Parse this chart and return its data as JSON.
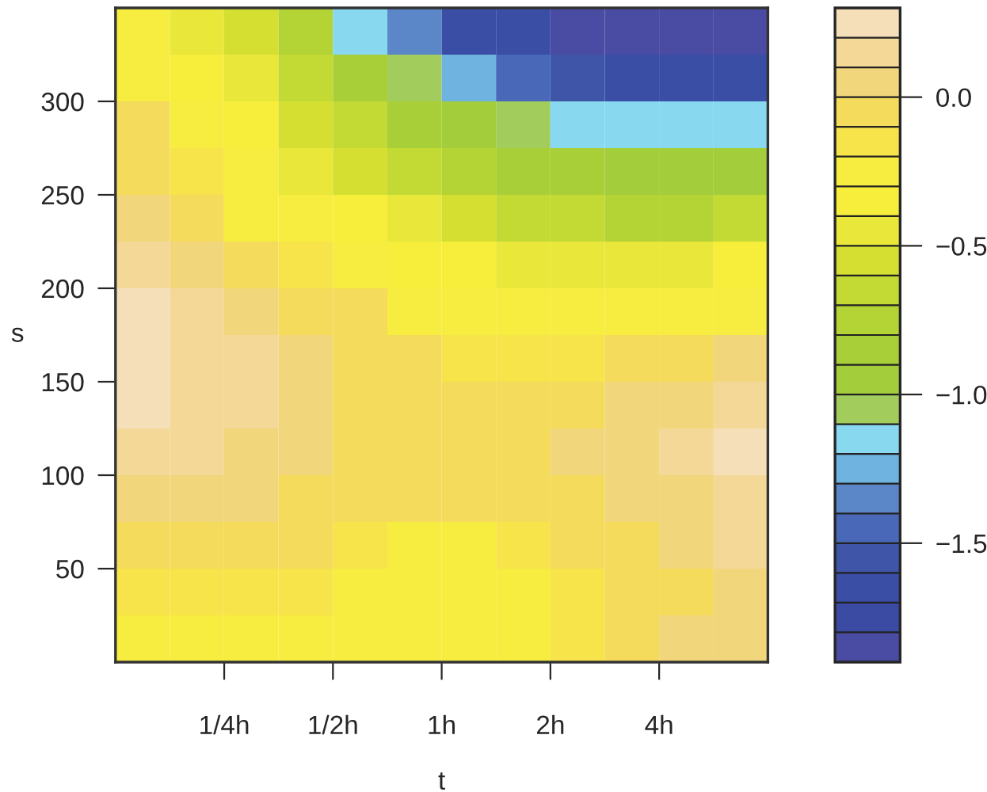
{
  "chart_data": {
    "type": "heatmap",
    "xlabel": "t",
    "ylabel": "s",
    "x": [
      0.149,
      0.21,
      0.297,
      0.42,
      0.595,
      0.841,
      1.19,
      1.68,
      2.38,
      3.36,
      4.76,
      6.73
    ],
    "log": "x",
    "y": [
      337.5,
      312.5,
      287.5,
      262.5,
      237.5,
      212.5,
      187.5,
      162.5,
      137.5,
      112.5,
      87.5,
      62.5,
      37.5,
      12.5
    ],
    "xlim": [
      0.125,
      8
    ],
    "xticks": [
      {
        "value": 0.25,
        "label": "1/4h"
      },
      {
        "value": 0.5,
        "label": "1/2h"
      },
      {
        "value": 1,
        "label": "1h"
      },
      {
        "value": 2,
        "label": "2h"
      },
      {
        "value": 4,
        "label": "4h"
      }
    ],
    "ylim": [
      0,
      350
    ],
    "yticks": [
      50,
      100,
      150,
      200,
      250,
      300
    ],
    "cells": [
      [
        -0.2,
        -0.45,
        -0.6,
        -0.8,
        -1.15,
        -1.4,
        -1.6,
        -1.7,
        -1.8,
        -1.85,
        -1.85,
        -1.9
      ],
      [
        -0.2,
        -0.35,
        -0.5,
        -0.65,
        -0.85,
        -1.05,
        -1.25,
        -1.45,
        -1.55,
        -1.6,
        -1.65,
        -1.65
      ],
      [
        -0.1,
        -0.25,
        -0.4,
        -0.55,
        -0.7,
        -0.85,
        -0.95,
        -1.05,
        -1.15,
        -1.15,
        -1.15,
        -1.2
      ],
      [
        -0.05,
        -0.15,
        -0.3,
        -0.45,
        -0.55,
        -0.65,
        -0.75,
        -0.85,
        -0.9,
        -0.95,
        -0.95,
        -0.95
      ],
      [
        0.05,
        -0.05,
        -0.2,
        -0.3,
        -0.4,
        -0.5,
        -0.6,
        -0.65,
        -0.7,
        -0.75,
        -0.75,
        -0.7
      ],
      [
        0.15,
        0.05,
        -0.05,
        -0.15,
        -0.25,
        -0.35,
        -0.4,
        -0.45,
        -0.5,
        -0.5,
        -0.45,
        -0.4
      ],
      [
        0.25,
        0.15,
        0.05,
        -0.05,
        -0.1,
        -0.2,
        -0.25,
        -0.3,
        -0.3,
        -0.3,
        -0.25,
        -0.2
      ],
      [
        0.25,
        0.15,
        0.1,
        0.0,
        -0.05,
        -0.1,
        -0.15,
        -0.15,
        -0.15,
        -0.1,
        -0.05,
        0.05
      ],
      [
        0.25,
        0.15,
        0.1,
        0.05,
        -0.05,
        -0.05,
        -0.1,
        -0.05,
        -0.05,
        0.0,
        0.05,
        0.15
      ],
      [
        0.15,
        0.1,
        0.05,
        0.0,
        -0.05,
        -0.1,
        -0.1,
        -0.05,
        0.0,
        0.05,
        0.1,
        0.2
      ],
      [
        0.05,
        0.05,
        0.0,
        -0.05,
        -0.1,
        -0.1,
        -0.1,
        -0.1,
        -0.05,
        0.0,
        0.05,
        0.15
      ],
      [
        -0.05,
        -0.05,
        -0.05,
        -0.1,
        -0.15,
        -0.2,
        -0.2,
        -0.15,
        -0.1,
        -0.05,
        0.0,
        0.1
      ],
      [
        -0.15,
        -0.15,
        -0.15,
        -0.15,
        -0.2,
        -0.25,
        -0.25,
        -0.2,
        -0.15,
        -0.1,
        -0.05,
        0.05
      ],
      [
        -0.2,
        -0.2,
        -0.2,
        -0.2,
        -0.2,
        -0.25,
        -0.25,
        -0.2,
        -0.15,
        -0.1,
        0.0,
        0.05
      ]
    ],
    "clim": [
      -1.9,
      0.3
    ],
    "cticks": [
      {
        "value": -1.5,
        "label": "−1.5"
      },
      {
        "value": -1.0,
        "label": "−1.0"
      },
      {
        "value": -0.5,
        "label": "−0.5"
      },
      {
        "value": 0.0,
        "label": "0.0"
      }
    ],
    "colors": [
      "#4a4ba3",
      "#3b4aa2",
      "#3a4ea6",
      "#3e55a8",
      "#4a68b8",
      "#5b86c8",
      "#6fb3e0",
      "#88d8f0",
      "#a2cc5c",
      "#a3cd3a",
      "#a9cf38",
      "#b4d334",
      "#c3d934",
      "#d4df32",
      "#e8e73a",
      "#f7ee3c",
      "#f7ec40",
      "#f7e34a",
      "#f5db5c",
      "#f2d67c",
      "#f3d898",
      "#f5dfb8"
    ]
  }
}
